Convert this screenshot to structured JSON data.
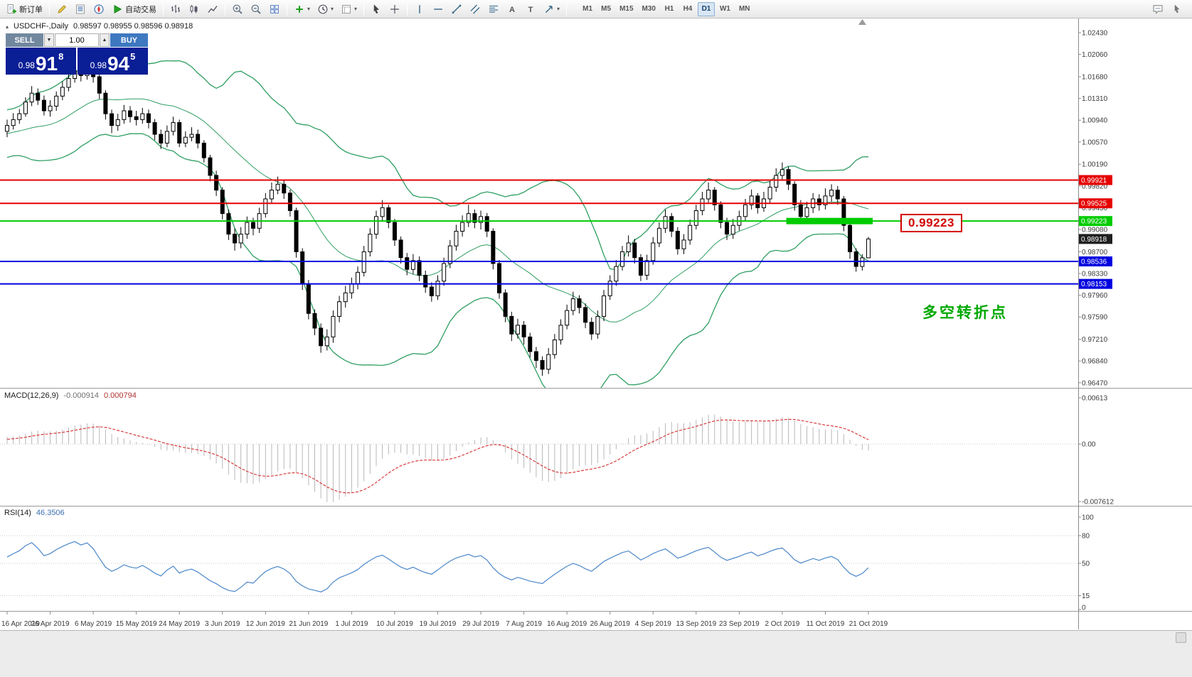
{
  "ui": {
    "glyphs": {
      "title_marker": "▴",
      "volume_down": "▼",
      "volume_up": "▲",
      "dropdown_caret": "▾"
    }
  },
  "toolbar": {
    "items": [
      {
        "type": "button",
        "name": "new-order",
        "icon": "doc-plus",
        "label": "新订单"
      },
      {
        "type": "sep"
      },
      {
        "type": "button",
        "name": "metaeditor",
        "icon": "pencil"
      },
      {
        "type": "button",
        "name": "market-watch",
        "icon": "book"
      },
      {
        "type": "button",
        "name": "navigator",
        "icon": "compass"
      },
      {
        "type": "button",
        "name": "autotrading",
        "icon": "play",
        "label": "自动交易"
      },
      {
        "type": "sep"
      },
      {
        "type": "button",
        "name": "bar-chart-mode",
        "icon": "bars"
      },
      {
        "type": "button",
        "name": "candlestick-mode",
        "icon": "candles"
      },
      {
        "type": "button",
        "name": "line-chart-mode",
        "icon": "linechart"
      },
      {
        "type": "sep"
      },
      {
        "type": "button",
        "name": "zoom-in",
        "icon": "zoom-in"
      },
      {
        "type": "button",
        "name": "zoom-out",
        "icon": "zoom-out"
      },
      {
        "type": "button",
        "name": "tile-windows",
        "icon": "tile"
      },
      {
        "type": "sep"
      },
      {
        "type": "button",
        "name": "indicators",
        "icon": "plus",
        "caret": true
      },
      {
        "type": "button",
        "name": "periods",
        "icon": "clock",
        "caret": true
      },
      {
        "type": "button",
        "name": "templates",
        "icon": "template",
        "caret": true
      },
      {
        "type": "sep"
      },
      {
        "type": "button",
        "name": "cursor-tool",
        "icon": "cursor"
      },
      {
        "type": "button",
        "name": "crosshair-tool",
        "icon": "crosshair"
      },
      {
        "type": "sep"
      },
      {
        "type": "button",
        "name": "vertical-line-tool",
        "icon": "vline"
      },
      {
        "type": "button",
        "name": "horizontal-line-tool",
        "icon": "hline"
      },
      {
        "type": "button",
        "name": "trendline-tool",
        "icon": "trend"
      },
      {
        "type": "button",
        "name": "channel-tool",
        "icon": "channel"
      },
      {
        "type": "button",
        "name": "fibonacci-tool",
        "icon": "fibo"
      },
      {
        "type": "button",
        "name": "text-tool",
        "icon": "textA"
      },
      {
        "type": "button",
        "name": "label-tool",
        "icon": "textT"
      },
      {
        "type": "button",
        "name": "arrows-tool",
        "icon": "arrow",
        "caret": true
      },
      {
        "type": "sep"
      }
    ],
    "timeframes": {
      "items": [
        "M1",
        "M5",
        "M15",
        "M30",
        "H1",
        "H4",
        "D1",
        "W1",
        "MN"
      ],
      "active": "D1"
    },
    "right_items": [
      {
        "name": "chat",
        "icon": "chat"
      },
      {
        "name": "pointer",
        "icon": "pointer"
      }
    ]
  },
  "chart_header": {
    "symbol": "USDCHF-,Daily",
    "ohlc": "0.98597 0.98955 0.98596 0.98918"
  },
  "trade_panel": {
    "sell_label": "SELL",
    "buy_label": "BUY",
    "volume": "1.00",
    "sell_price": {
      "big": "0.98",
      "pips": "91",
      "point": "8"
    },
    "buy_price": {
      "big": "0.98",
      "pips": "94",
      "point": "5"
    }
  },
  "macd_panel": {
    "label": "MACD(12,26,9)",
    "main_value": "-0.000914",
    "signal_value": "0.000794",
    "params": [
      12,
      26,
      9
    ],
    "histogram_color": "#b8b8b8",
    "signal_color": "#d62b2b",
    "axis_labels": [
      {
        "text": "0.00613",
        "value": 0.00613
      },
      {
        "text": "0.00",
        "value": 0
      },
      {
        "text": "-0.007612",
        "value": -0.007612
      }
    ]
  },
  "rsi_panel": {
    "label": "RSI(14)",
    "value": "46.3506",
    "period": 14,
    "line_color": "#4a86c8",
    "levels": [
      80,
      50,
      15
    ],
    "axis_labels": [
      {
        "text": "100",
        "value": 100
      },
      {
        "text": "80",
        "value": 80
      },
      {
        "text": "50",
        "value": 50
      },
      {
        "text": "15",
        "value": 15
      },
      {
        "text": "0",
        "value": 0
      }
    ]
  },
  "chart_data": {
    "type": "candlestick",
    "symbol": "USDCHF",
    "timeframe": "Daily",
    "ylim": [
      0.9647,
      1.0243
    ],
    "style": {
      "bull_color": "#ffffff",
      "bear_color": "#000000",
      "wick_color": "#000000",
      "bollinger_color": "#2e9e62"
    },
    "bollinger": {
      "period": 20,
      "deviation": 2
    },
    "y_axis_labels": [
      "1.02430",
      "1.02060",
      "1.01680",
      "1.01310",
      "1.00940",
      "1.00570",
      "1.00190",
      "0.99820",
      "0.99450",
      "0.99080",
      "0.98700",
      "0.98330",
      "0.97960",
      "0.97590",
      "0.97210",
      "0.96840",
      "0.96470"
    ],
    "x_axis": {
      "labels": [
        "16 Apr 2019",
        "26 Apr 2019",
        "6 May 2019",
        "15 May 2019",
        "24 May 2019",
        "3 Jun 2019",
        "12 Jun 2019",
        "21 Jun 2019",
        "1 Jul 2019",
        "10 Jul 2019",
        "19 Jul 2019",
        "29 Jul 2019",
        "7 Aug 2019",
        "16 Aug 2019",
        "26 Aug 2019",
        "4 Sep 2019",
        "13 Sep 2019",
        "23 Sep 2019",
        "2 Oct 2019",
        "11 Oct 2019",
        "21 Oct 2019"
      ],
      "indices": [
        0,
        7,
        14,
        21,
        28,
        35,
        42,
        49,
        56,
        63,
        70,
        77,
        84,
        91,
        98,
        105,
        112,
        119,
        126,
        133,
        140
      ]
    },
    "hlines": [
      {
        "price": 0.99921,
        "label": "0.99921",
        "color": "#e60000",
        "width": 2
      },
      {
        "price": 0.99525,
        "label": "0.99525",
        "color": "#e60000",
        "width": 2
      },
      {
        "price": 0.99223,
        "label": "0.99223",
        "color": "#00cc00",
        "width": 2
      },
      {
        "price": 0.98536,
        "label": "0.98536",
        "color": "#0000e0",
        "width": 2
      },
      {
        "price": 0.98153,
        "label": "0.98153",
        "color": "#0000e0",
        "width": 2
      }
    ],
    "current_price": {
      "value": 0.98918,
      "label": "0.98918",
      "tag_color": "#1f1f1f"
    },
    "highlight_bar": {
      "price": 0.99223,
      "from_index": 127,
      "to_index": 140,
      "color": "#00cc00",
      "thickness": 9
    },
    "callout": {
      "text": "0.99223",
      "color": "#d40000"
    },
    "annotation": {
      "text": "多空转折点",
      "color": "#00a800"
    },
    "candles": [
      [
        1.0075,
        1.0095,
        1.0065,
        1.0085
      ],
      [
        1.0085,
        1.0106,
        1.0078,
        1.0095
      ],
      [
        1.0095,
        1.0113,
        1.0088,
        1.0105
      ],
      [
        1.0105,
        1.0133,
        1.01,
        1.0125
      ],
      [
        1.0125,
        1.0152,
        1.0118,
        1.014
      ],
      [
        1.014,
        1.0148,
        1.012,
        1.0128
      ],
      [
        1.0128,
        1.0136,
        1.0102,
        1.011
      ],
      [
        1.011,
        1.0128,
        1.01,
        1.0118
      ],
      [
        1.0118,
        1.0143,
        1.011,
        1.0135
      ],
      [
        1.0135,
        1.016,
        1.0128,
        1.015
      ],
      [
        1.015,
        1.0175,
        1.0143,
        1.0165
      ],
      [
        1.0165,
        1.019,
        1.0158,
        1.0178
      ],
      [
        1.0178,
        1.0186,
        1.016,
        1.017
      ],
      [
        1.017,
        1.0196,
        1.0163,
        1.0182
      ],
      [
        1.0182,
        1.0188,
        1.0158,
        1.0168
      ],
      [
        1.0168,
        1.0172,
        1.013,
        1.014
      ],
      [
        1.014,
        1.0145,
        1.0095,
        1.0105
      ],
      [
        1.0105,
        1.0112,
        1.0072,
        1.0085
      ],
      [
        1.0085,
        1.0105,
        1.0076,
        1.0095
      ],
      [
        1.0095,
        1.012,
        1.0088,
        1.011
      ],
      [
        1.011,
        1.0118,
        1.009,
        1.01
      ],
      [
        1.01,
        1.011,
        1.0085,
        1.0095
      ],
      [
        1.0095,
        1.0115,
        1.0088,
        1.0105
      ],
      [
        1.0105,
        1.0112,
        1.008,
        1.009
      ],
      [
        1.009,
        1.0096,
        1.006,
        1.007
      ],
      [
        1.007,
        1.0078,
        1.0045,
        1.0055
      ],
      [
        1.0055,
        1.0085,
        1.0048,
        1.0075
      ],
      [
        1.0075,
        1.01,
        1.0068,
        1.009
      ],
      [
        1.009,
        1.0095,
        1.0048,
        1.0055
      ],
      [
        1.0055,
        1.0075,
        1.0048,
        1.0065
      ],
      [
        1.0065,
        1.0082,
        1.0058,
        1.007
      ],
      [
        1.007,
        1.0078,
        1.0046,
        1.0055
      ],
      [
        1.0055,
        1.006,
        1.0022,
        1.003
      ],
      [
        1.003,
        1.0035,
        0.999,
        1.0
      ],
      [
        1.0,
        1.0008,
        0.9965,
        0.9975
      ],
      [
        0.9975,
        0.998,
        0.9925,
        0.9935
      ],
      [
        0.9935,
        0.9942,
        0.989,
        0.99
      ],
      [
        0.99,
        0.991,
        0.9872,
        0.9885
      ],
      [
        0.9885,
        0.9912,
        0.9876,
        0.99
      ],
      [
        0.99,
        0.993,
        0.9892,
        0.992
      ],
      [
        0.992,
        0.9928,
        0.9898,
        0.991
      ],
      [
        0.991,
        0.9945,
        0.9902,
        0.9935
      ],
      [
        0.9935,
        0.997,
        0.9928,
        0.996
      ],
      [
        0.996,
        0.9988,
        0.9952,
        0.9975
      ],
      [
        0.9975,
        0.9998,
        0.9968,
        0.9985
      ],
      [
        0.9985,
        0.9992,
        0.996,
        0.997
      ],
      [
        0.997,
        0.9976,
        0.993,
        0.994
      ],
      [
        0.994,
        0.9945,
        0.986,
        0.987
      ],
      [
        0.987,
        0.9876,
        0.9805,
        0.9815
      ],
      [
        0.9815,
        0.9822,
        0.9755,
        0.9765
      ],
      [
        0.9765,
        0.9772,
        0.9728,
        0.974
      ],
      [
        0.974,
        0.9748,
        0.9698,
        0.971
      ],
      [
        0.971,
        0.9738,
        0.9702,
        0.9725
      ],
      [
        0.9725,
        0.977,
        0.9715,
        0.976
      ],
      [
        0.976,
        0.9795,
        0.975,
        0.9785
      ],
      [
        0.9785,
        0.9812,
        0.9775,
        0.98
      ],
      [
        0.98,
        0.9826,
        0.979,
        0.9815
      ],
      [
        0.9815,
        0.9845,
        0.9806,
        0.9835
      ],
      [
        0.9835,
        0.988,
        0.9828,
        0.987
      ],
      [
        0.987,
        0.991,
        0.9862,
        0.99
      ],
      [
        0.99,
        0.994,
        0.9892,
        0.993
      ],
      [
        0.993,
        0.9958,
        0.9922,
        0.9945
      ],
      [
        0.9945,
        0.995,
        0.991,
        0.992
      ],
      [
        0.992,
        0.9926,
        0.988,
        0.989
      ],
      [
        0.989,
        0.9896,
        0.985,
        0.986
      ],
      [
        0.986,
        0.9868,
        0.983,
        0.984
      ],
      [
        0.984,
        0.9866,
        0.9832,
        0.9855
      ],
      [
        0.9855,
        0.9862,
        0.982,
        0.983
      ],
      [
        0.983,
        0.9838,
        0.98,
        0.981
      ],
      [
        0.981,
        0.9818,
        0.9785,
        0.9795
      ],
      [
        0.9795,
        0.983,
        0.9788,
        0.982
      ],
      [
        0.982,
        0.986,
        0.9812,
        0.985
      ],
      [
        0.985,
        0.989,
        0.9842,
        0.988
      ],
      [
        0.988,
        0.9916,
        0.9872,
        0.9905
      ],
      [
        0.9905,
        0.9932,
        0.9896,
        0.992
      ],
      [
        0.992,
        0.995,
        0.9912,
        0.9935
      ],
      [
        0.9935,
        0.9942,
        0.991,
        0.992
      ],
      [
        0.992,
        0.994,
        0.9908,
        0.993
      ],
      [
        0.993,
        0.9936,
        0.9895,
        0.9905
      ],
      [
        0.9905,
        0.991,
        0.984,
        0.985
      ],
      [
        0.985,
        0.9856,
        0.979,
        0.98
      ],
      [
        0.98,
        0.9806,
        0.975,
        0.976
      ],
      [
        0.976,
        0.9768,
        0.9718,
        0.973
      ],
      [
        0.973,
        0.9756,
        0.9722,
        0.9745
      ],
      [
        0.9745,
        0.9752,
        0.9712,
        0.9725
      ],
      [
        0.9725,
        0.9732,
        0.969,
        0.97
      ],
      [
        0.97,
        0.9708,
        0.9672,
        0.9685
      ],
      [
        0.9685,
        0.9692,
        0.9659,
        0.967
      ],
      [
        0.967,
        0.9706,
        0.9662,
        0.9695
      ],
      [
        0.9695,
        0.973,
        0.9688,
        0.972
      ],
      [
        0.972,
        0.9755,
        0.9712,
        0.9745
      ],
      [
        0.9745,
        0.978,
        0.9738,
        0.977
      ],
      [
        0.977,
        0.9802,
        0.9762,
        0.979
      ],
      [
        0.979,
        0.9796,
        0.9765,
        0.9775
      ],
      [
        0.9775,
        0.9782,
        0.974,
        0.975
      ],
      [
        0.975,
        0.9758,
        0.972,
        0.973
      ],
      [
        0.973,
        0.977,
        0.9722,
        0.976
      ],
      [
        0.976,
        0.9805,
        0.9752,
        0.9795
      ],
      [
        0.9795,
        0.983,
        0.9788,
        0.982
      ],
      [
        0.982,
        0.9856,
        0.9812,
        0.9845
      ],
      [
        0.9845,
        0.988,
        0.9838,
        0.987
      ],
      [
        0.987,
        0.9898,
        0.9862,
        0.9885
      ],
      [
        0.9885,
        0.9892,
        0.985,
        0.986
      ],
      [
        0.986,
        0.9866,
        0.982,
        0.983
      ],
      [
        0.983,
        0.9865,
        0.9822,
        0.9855
      ],
      [
        0.9855,
        0.9895,
        0.9848,
        0.9885
      ],
      [
        0.9885,
        0.992,
        0.9878,
        0.991
      ],
      [
        0.991,
        0.9942,
        0.9902,
        0.993
      ],
      [
        0.993,
        0.9936,
        0.9895,
        0.9905
      ],
      [
        0.9905,
        0.9912,
        0.9865,
        0.9875
      ],
      [
        0.9875,
        0.99,
        0.9866,
        0.989
      ],
      [
        0.989,
        0.9925,
        0.9882,
        0.9915
      ],
      [
        0.9915,
        0.995,
        0.9908,
        0.994
      ],
      [
        0.994,
        0.9972,
        0.9932,
        0.996
      ],
      [
        0.996,
        0.9988,
        0.9952,
        0.9975
      ],
      [
        0.9975,
        0.998,
        0.994,
        0.995
      ],
      [
        0.995,
        0.9956,
        0.991,
        0.992
      ],
      [
        0.992,
        0.9928,
        0.989,
        0.99
      ],
      [
        0.99,
        0.9926,
        0.9892,
        0.9915
      ],
      [
        0.9915,
        0.994,
        0.9906,
        0.993
      ],
      [
        0.993,
        0.996,
        0.9922,
        0.995
      ],
      [
        0.995,
        0.9976,
        0.9942,
        0.9965
      ],
      [
        0.9965,
        0.997,
        0.9935,
        0.9945
      ],
      [
        0.9945,
        0.9972,
        0.9938,
        0.996
      ],
      [
        0.996,
        0.999,
        0.9952,
        0.998
      ],
      [
        0.998,
        1.0012,
        0.9972,
        1.0
      ],
      [
        1.0,
        1.0022,
        0.9992,
        1.001
      ],
      [
        1.001,
        1.0015,
        0.9975,
        0.9985
      ],
      [
        0.9985,
        0.999,
        0.994,
        0.995
      ],
      [
        0.995,
        0.9958,
        0.992,
        0.993
      ],
      [
        0.993,
        0.9955,
        0.9922,
        0.9945
      ],
      [
        0.9945,
        0.997,
        0.9936,
        0.996
      ],
      [
        0.996,
        0.9968,
        0.994,
        0.995
      ],
      [
        0.995,
        0.9978,
        0.9942,
        0.9965
      ],
      [
        0.9965,
        0.9985,
        0.9955,
        0.9975
      ],
      [
        0.9975,
        0.9982,
        0.995,
        0.996
      ],
      [
        0.996,
        0.9965,
        0.9905,
        0.9915
      ],
      [
        0.9915,
        0.992,
        0.9858,
        0.987
      ],
      [
        0.987,
        0.9876,
        0.9836,
        0.9845
      ],
      [
        0.9845,
        0.9866,
        0.9838,
        0.98597
      ],
      [
        0.98597,
        0.98955,
        0.98596,
        0.98918
      ]
    ]
  }
}
